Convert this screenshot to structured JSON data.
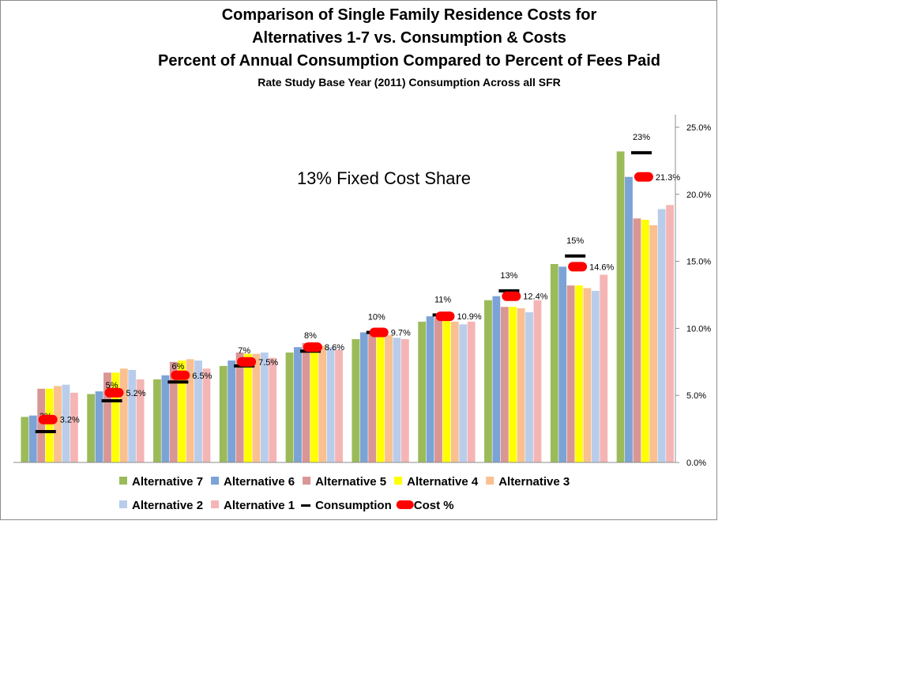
{
  "chart_data": {
    "type": "bar",
    "title_lines": [
      "Comparison of Single Family Residence Costs for",
      "Alternatives 1-7 vs. Consumption & Costs",
      "Percent of Annual Consumption Compared to Percent of Fees Paid"
    ],
    "subtitle": "Rate Study Base Year (2011) Consumption Across all SFR",
    "annotation": "13% Fixed Cost Share",
    "categories": [
      "",
      "",
      "",
      "",
      "",
      "",
      "",
      "",
      "",
      ""
    ],
    "ylim": [
      0,
      25
    ],
    "y_ticks": [
      0,
      5,
      10,
      15,
      20,
      25
    ],
    "y_tick_labels": [
      "0.0%",
      "5.0%",
      "10.0%",
      "15.0%",
      "20.0%",
      "25.0%"
    ],
    "y_axis_position": "right",
    "grid": false,
    "legend_position": "bottom",
    "series": [
      {
        "name": "Alternative 7",
        "kind": "bar",
        "color": "#9bbb59",
        "values": [
          3.4,
          5.1,
          6.2,
          7.2,
          8.2,
          9.2,
          10.5,
          12.1,
          14.8,
          23.2
        ]
      },
      {
        "name": "Alternative 6",
        "kind": "bar",
        "color": "#7ba3d6",
        "values": [
          3.5,
          5.3,
          6.5,
          7.6,
          8.6,
          9.7,
          10.9,
          12.4,
          14.6,
          21.3
        ]
      },
      {
        "name": "Alternative 5",
        "kind": "bar",
        "color": "#d99694",
        "values": [
          5.5,
          6.7,
          7.5,
          8.2,
          8.9,
          9.8,
          10.8,
          11.6,
          13.2,
          18.2
        ]
      },
      {
        "name": "Alternative 4",
        "kind": "bar",
        "color": "#ffff00",
        "values": [
          5.5,
          6.7,
          7.6,
          8.1,
          8.8,
          9.6,
          10.6,
          11.6,
          13.2,
          18.1
        ]
      },
      {
        "name": "Alternative 3",
        "kind": "bar",
        "color": "#fac08f",
        "values": [
          5.7,
          7.0,
          7.7,
          8.1,
          8.7,
          9.5,
          10.5,
          11.5,
          13.0,
          17.7
        ]
      },
      {
        "name": "Alternative 2",
        "kind": "bar",
        "color": "#b9cdeb",
        "values": [
          5.8,
          6.9,
          7.6,
          8.2,
          8.6,
          9.3,
          10.3,
          11.2,
          12.8,
          18.9
        ]
      },
      {
        "name": "Alternative 1",
        "kind": "bar",
        "color": "#f5b5b5",
        "values": [
          5.2,
          6.2,
          7.0,
          7.8,
          8.4,
          9.2,
          10.5,
          12.1,
          14.0,
          19.2
        ]
      },
      {
        "name": "Consumption",
        "kind": "marker-dash",
        "color": "#000000",
        "values": [
          2.3,
          4.6,
          6.0,
          7.2,
          8.3,
          9.7,
          11.0,
          12.8,
          15.4,
          23.1
        ],
        "labels": [
          "2%",
          "5%",
          "6%",
          "7%",
          "8%",
          "10%",
          "11%",
          "13%",
          "15%",
          "23%"
        ]
      },
      {
        "name": "Cost %",
        "kind": "marker-pill",
        "color": "#ff0000",
        "values": [
          3.2,
          5.2,
          6.5,
          7.5,
          8.6,
          9.7,
          10.9,
          12.4,
          14.6,
          21.3
        ],
        "labels": [
          "3.2%",
          "5.2%",
          "6.5%",
          "7.5%",
          "8.6%",
          "9.7%",
          "10.9%",
          "12.4%",
          "14.6%",
          "21.3%"
        ]
      }
    ]
  }
}
